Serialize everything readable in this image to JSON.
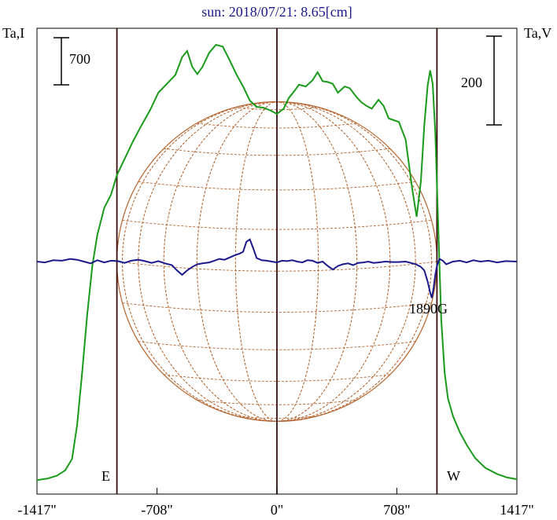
{
  "chart_data": {
    "type": "line",
    "title": "sun: 2018/07/21: 8.65[cm]",
    "left_axis_label": "Ta,I",
    "right_axis_label": "Ta,V",
    "xlim": [
      -1417,
      1417
    ],
    "x_ticks": [
      {
        "value": -1417,
        "label": "-1417\""
      },
      {
        "value": -708,
        "label": "-708\""
      },
      {
        "value": 0,
        "label": "0\""
      },
      {
        "value": 708,
        "label": "708\""
      },
      {
        "value": 1417,
        "label": "1417\""
      }
    ],
    "vertical_markers": [
      -945,
      0,
      945
    ],
    "limb_labels": {
      "east": "E",
      "west": "W"
    },
    "scale_bars": {
      "intensity": "700",
      "polarization": "200"
    },
    "annotation": {
      "text": "1890G",
      "x": 920
    },
    "solar_disk": {
      "radius_arcsec": 945
    },
    "series": [
      {
        "name": "I",
        "color": "#1a9a1a",
        "points": [
          [
            -1417,
            -20
          ],
          [
            -1350,
            0
          ],
          [
            -1300,
            30
          ],
          [
            -1250,
            90
          ],
          [
            -1210,
            220
          ],
          [
            -1180,
            600
          ],
          [
            -1150,
            1200
          ],
          [
            -1120,
            1850
          ],
          [
            -1090,
            2400
          ],
          [
            -1060,
            2750
          ],
          [
            -1020,
            3050
          ],
          [
            -980,
            3200
          ],
          [
            -945,
            3420
          ],
          [
            -900,
            3600
          ],
          [
            -850,
            3800
          ],
          [
            -800,
            3980
          ],
          [
            -750,
            4150
          ],
          [
            -700,
            4350
          ],
          [
            -650,
            4450
          ],
          [
            -600,
            4550
          ],
          [
            -560,
            4750
          ],
          [
            -530,
            4820
          ],
          [
            -500,
            4640
          ],
          [
            -470,
            4560
          ],
          [
            -440,
            4640
          ],
          [
            -400,
            4800
          ],
          [
            -360,
            4890
          ],
          [
            -320,
            4870
          ],
          [
            -280,
            4720
          ],
          [
            -240,
            4560
          ],
          [
            -200,
            4420
          ],
          [
            -160,
            4260
          ],
          [
            -120,
            4190
          ],
          [
            -80,
            4180
          ],
          [
            -40,
            4150
          ],
          [
            0,
            4110
          ],
          [
            40,
            4170
          ],
          [
            70,
            4290
          ],
          [
            100,
            4360
          ],
          [
            130,
            4440
          ],
          [
            170,
            4420
          ],
          [
            210,
            4490
          ],
          [
            240,
            4580
          ],
          [
            270,
            4480
          ],
          [
            300,
            4470
          ],
          [
            330,
            4450
          ],
          [
            360,
            4350
          ],
          [
            400,
            4420
          ],
          [
            430,
            4400
          ],
          [
            470,
            4300
          ],
          [
            500,
            4240
          ],
          [
            530,
            4200
          ],
          [
            560,
            4170
          ],
          [
            600,
            4270
          ],
          [
            630,
            4200
          ],
          [
            660,
            4060
          ],
          [
            690,
            4040
          ],
          [
            720,
            4020
          ],
          [
            760,
            3820
          ],
          [
            800,
            3250
          ],
          [
            825,
            2950
          ],
          [
            850,
            3350
          ],
          [
            870,
            3980
          ],
          [
            890,
            4430
          ],
          [
            905,
            4600
          ],
          [
            920,
            4450
          ],
          [
            935,
            3900
          ],
          [
            950,
            3000
          ],
          [
            970,
            1800
          ],
          [
            990,
            1200
          ],
          [
            1010,
            900
          ],
          [
            1040,
            700
          ],
          [
            1080,
            520
          ],
          [
            1120,
            380
          ],
          [
            1170,
            230
          ],
          [
            1230,
            120
          ],
          [
            1300,
            50
          ],
          [
            1360,
            10
          ],
          [
            1417,
            -10
          ]
        ]
      },
      {
        "name": "V",
        "color": "#1a1a8c",
        "points": [
          [
            -1417,
            0
          ],
          [
            -1370,
            -2
          ],
          [
            -1320,
            3
          ],
          [
            -1270,
            2
          ],
          [
            -1220,
            6
          ],
          [
            -1180,
            4
          ],
          [
            -1140,
            0
          ],
          [
            -1100,
            -4
          ],
          [
            -1060,
            3
          ],
          [
            -1020,
            -2
          ],
          [
            -980,
            2
          ],
          [
            -940,
            1
          ],
          [
            -900,
            -3
          ],
          [
            -860,
            2
          ],
          [
            -820,
            4
          ],
          [
            -780,
            1
          ],
          [
            -740,
            -3
          ],
          [
            -700,
            1
          ],
          [
            -660,
            -4
          ],
          [
            -620,
            -8
          ],
          [
            -590,
            -20
          ],
          [
            -560,
            -30
          ],
          [
            -530,
            -20
          ],
          [
            -500,
            -12
          ],
          [
            -470,
            -6
          ],
          [
            -440,
            -4
          ],
          [
            -400,
            -2
          ],
          [
            -370,
            2
          ],
          [
            -340,
            6
          ],
          [
            -310,
            4
          ],
          [
            -280,
            9
          ],
          [
            -250,
            14
          ],
          [
            -220,
            18
          ],
          [
            -200,
            22
          ],
          [
            -180,
            45
          ],
          [
            -160,
            50
          ],
          [
            -140,
            30
          ],
          [
            -120,
            8
          ],
          [
            -90,
            3
          ],
          [
            -60,
            2
          ],
          [
            -30,
            0
          ],
          [
            0,
            -2
          ],
          [
            30,
            2
          ],
          [
            60,
            1
          ],
          [
            90,
            3
          ],
          [
            120,
            0
          ],
          [
            150,
            -2
          ],
          [
            180,
            3
          ],
          [
            210,
            2
          ],
          [
            240,
            -3
          ],
          [
            270,
            0
          ],
          [
            300,
            -10
          ],
          [
            330,
            -18
          ],
          [
            360,
            -10
          ],
          [
            390,
            -6
          ],
          [
            420,
            -4
          ],
          [
            450,
            -8
          ],
          [
            480,
            -3
          ],
          [
            510,
            -2
          ],
          [
            540,
            0
          ],
          [
            570,
            -3
          ],
          [
            600,
            -2
          ],
          [
            640,
            0
          ],
          [
            680,
            -1
          ],
          [
            720,
            -1
          ],
          [
            760,
            0
          ],
          [
            790,
            -3
          ],
          [
            820,
            -6
          ],
          [
            850,
            -12
          ],
          [
            870,
            -20
          ],
          [
            890,
            -45
          ],
          [
            905,
            -70
          ],
          [
            915,
            -82
          ],
          [
            925,
            -60
          ],
          [
            935,
            -30
          ],
          [
            945,
            -10
          ],
          [
            960,
            6
          ],
          [
            980,
            2
          ],
          [
            1000,
            -6
          ],
          [
            1040,
            0
          ],
          [
            1080,
            2
          ],
          [
            1120,
            -2
          ],
          [
            1160,
            3
          ],
          [
            1200,
            0
          ],
          [
            1250,
            2
          ],
          [
            1300,
            -2
          ],
          [
            1350,
            1
          ],
          [
            1417,
            0
          ]
        ]
      }
    ]
  }
}
